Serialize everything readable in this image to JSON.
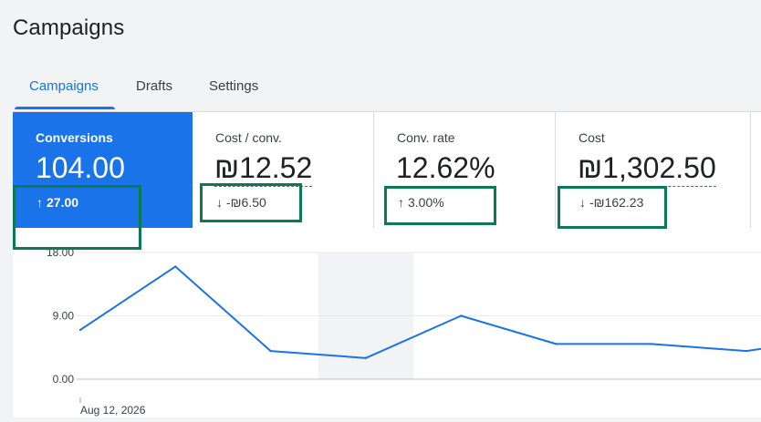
{
  "page": {
    "title": "Campaigns"
  },
  "tabs": [
    {
      "label": "Campaigns",
      "active": true
    },
    {
      "label": "Drafts",
      "active": false
    },
    {
      "label": "Settings",
      "active": false
    }
  ],
  "metrics": [
    {
      "title": "Conversions",
      "value": "104.00",
      "delta": "27.00",
      "direction": "up",
      "active": true
    },
    {
      "title": "Cost / conv.",
      "value": "₪12.52",
      "delta": "-₪6.50",
      "direction": "down",
      "active": false
    },
    {
      "title": "Conv. rate",
      "value": "12.62%",
      "delta": "3.00%",
      "direction": "up",
      "active": false
    },
    {
      "title": "Cost",
      "value": "₪1,302.50",
      "delta": "-₪162.23",
      "direction": "down",
      "active": false
    }
  ],
  "icons": {
    "up": "arrow-up-icon",
    "down": "arrow-down-icon"
  },
  "colors": {
    "accent": "#1a73e8",
    "highlight_box": "#0b7a52",
    "weekend_band": "#f1f3f4"
  },
  "chart_data": {
    "type": "line",
    "series": [
      {
        "values": [
          7,
          16,
          4,
          3,
          9,
          5,
          5,
          4,
          6
        ]
      }
    ],
    "x": [
      "Aug 12, 2026",
      "",
      "",
      "",
      "",
      "",
      "",
      "",
      ""
    ],
    "yticks": [
      "0.00",
      "9.00",
      "18.00"
    ],
    "ylim": [
      0,
      18
    ],
    "grid": true,
    "highlight_band_index": 3
  }
}
